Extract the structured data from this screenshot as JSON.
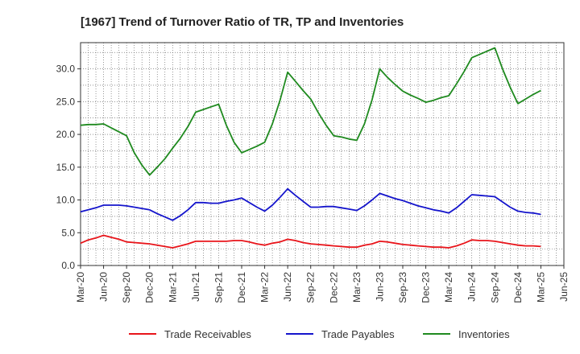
{
  "chart_data": {
    "type": "line",
    "title": "[1967]  Trend of Turnover Ratio of TR, TP and Inventories",
    "xlabel": "",
    "ylabel": "",
    "ylim": [
      0,
      34
    ],
    "yticks": [
      "0.0",
      "5.0",
      "10.0",
      "15.0",
      "20.0",
      "25.0",
      "30.0"
    ],
    "x_tick_labels": [
      "Mar-20",
      "Jun-20",
      "Sep-20",
      "Dec-20",
      "Mar-21",
      "Jun-21",
      "Sep-21",
      "Dec-21",
      "Mar-22",
      "Jun-22",
      "Sep-22",
      "Dec-22",
      "Mar-23",
      "Jun-23",
      "Sep-23",
      "Dec-23",
      "Mar-24",
      "Jun-24",
      "Sep-24",
      "Dec-24",
      "Mar-25",
      "Jun-25"
    ],
    "grid": true,
    "legend_position": "bottom",
    "categories": [
      "Mar-20",
      "Apr-20",
      "May-20",
      "Jun-20",
      "Jul-20",
      "Aug-20",
      "Sep-20",
      "Oct-20",
      "Nov-20",
      "Dec-20",
      "Jan-21",
      "Feb-21",
      "Mar-21",
      "Apr-21",
      "May-21",
      "Jun-21",
      "Jul-21",
      "Aug-21",
      "Sep-21",
      "Oct-21",
      "Nov-21",
      "Dec-21",
      "Jan-22",
      "Feb-22",
      "Mar-22",
      "Apr-22",
      "May-22",
      "Jun-22",
      "Jul-22",
      "Aug-22",
      "Sep-22",
      "Oct-22",
      "Nov-22",
      "Dec-22",
      "Jan-23",
      "Feb-23",
      "Mar-23",
      "Apr-23",
      "May-23",
      "Jun-23",
      "Jul-23",
      "Aug-23",
      "Sep-23",
      "Oct-23",
      "Nov-23",
      "Dec-23",
      "Jan-24",
      "Feb-24",
      "Mar-24",
      "Apr-24",
      "May-24",
      "Jun-24",
      "Jul-24",
      "Aug-24",
      "Sep-24",
      "Oct-24",
      "Nov-24",
      "Dec-24",
      "Jan-25",
      "Feb-25",
      "Mar-25"
    ],
    "series": [
      {
        "name": "Trade Receivables",
        "color": "#e8141a",
        "values": [
          3.4,
          3.9,
          4.2,
          4.6,
          4.3,
          4.0,
          3.6,
          3.5,
          3.4,
          3.3,
          3.1,
          2.9,
          2.7,
          3.0,
          3.3,
          3.7,
          3.7,
          3.7,
          3.7,
          3.7,
          3.8,
          3.8,
          3.6,
          3.3,
          3.1,
          3.4,
          3.6,
          4.0,
          3.8,
          3.5,
          3.3,
          3.2,
          3.1,
          3.0,
          2.9,
          2.8,
          2.8,
          3.1,
          3.3,
          3.7,
          3.6,
          3.4,
          3.2,
          3.1,
          3.0,
          2.9,
          2.8,
          2.8,
          2.7,
          3.0,
          3.4,
          3.9,
          3.8,
          3.8,
          3.7,
          3.5,
          3.3,
          3.1,
          3.0,
          3.0,
          2.9
        ]
      },
      {
        "name": "Trade Payables",
        "color": "#1414cc",
        "values": [
          8.2,
          8.5,
          8.8,
          9.2,
          9.2,
          9.2,
          9.1,
          8.9,
          8.7,
          8.5,
          7.9,
          7.4,
          6.9,
          7.6,
          8.5,
          9.6,
          9.6,
          9.5,
          9.5,
          9.8,
          10.0,
          10.3,
          9.6,
          8.9,
          8.3,
          9.2,
          10.4,
          11.7,
          10.7,
          9.8,
          8.9,
          8.9,
          9.0,
          9.0,
          8.8,
          8.6,
          8.4,
          9.1,
          10.0,
          11.0,
          10.6,
          10.2,
          9.9,
          9.5,
          9.1,
          8.8,
          8.5,
          8.3,
          8.0,
          8.8,
          9.8,
          10.8,
          10.7,
          10.6,
          10.5,
          9.7,
          8.9,
          8.3,
          8.1,
          8.0,
          7.8
        ]
      },
      {
        "name": "Inventories",
        "color": "#1f8a1f",
        "values": [
          21.4,
          21.5,
          21.5,
          21.6,
          21.0,
          20.4,
          19.8,
          17.2,
          15.3,
          13.8,
          15.0,
          16.3,
          17.9,
          19.4,
          21.2,
          23.4,
          23.8,
          24.2,
          24.6,
          21.4,
          18.8,
          17.2,
          17.7,
          18.2,
          18.8,
          21.6,
          25.2,
          29.5,
          28.1,
          26.7,
          25.4,
          23.3,
          21.4,
          19.8,
          19.6,
          19.3,
          19.1,
          21.6,
          25.3,
          30.0,
          28.7,
          27.6,
          26.6,
          26.0,
          25.5,
          24.9,
          25.2,
          25.6,
          25.9,
          27.7,
          29.6,
          31.7,
          32.2,
          32.7,
          33.2,
          30.0,
          27.2,
          24.7,
          25.4,
          26.1,
          26.7
        ]
      }
    ]
  }
}
